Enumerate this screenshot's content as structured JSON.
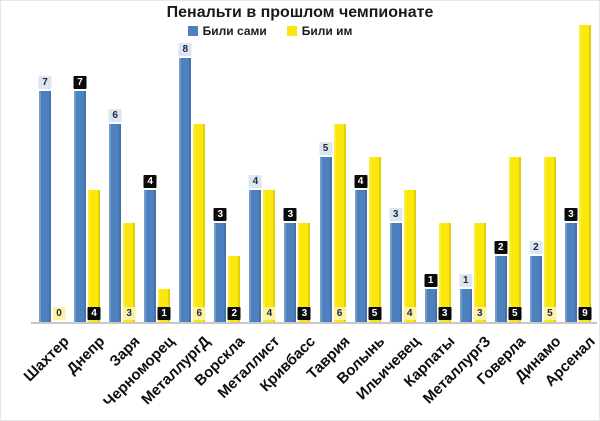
{
  "chart_data": {
    "type": "bar",
    "title": "Пенальти в прошлом чемпионате",
    "categories": [
      "Шахтер",
      "Днепр",
      "Заря",
      "Черноморец",
      "МеталлургД",
      "Ворскла",
      "Металлист",
      "Кривбасс",
      "Таврия",
      "Волынь",
      "Ильичевец",
      "Карпаты",
      "МеталлургЗ",
      "Говерла",
      "Динамо",
      "Арсенал"
    ],
    "series": [
      {
        "name": "Били сами",
        "color": "#4d81bd",
        "values": [
          7,
          7,
          6,
          4,
          8,
          3,
          4,
          3,
          5,
          4,
          3,
          1,
          1,
          2,
          2,
          3
        ]
      },
      {
        "name": "Били им",
        "color": "#fbe70c",
        "values": [
          0,
          4,
          3,
          1,
          6,
          2,
          4,
          3,
          6,
          5,
          4,
          3,
          3,
          5,
          5,
          9
        ]
      }
    ],
    "ylim": [
      0,
      9
    ],
    "grid": false,
    "legend_position": "top",
    "value_labels": "alternating light and dark tags",
    "label_style": {
      "light_blue_bg": "#dce6f2",
      "light_yellow_bg": "#fdf3a7",
      "dark_bg": "#0a0a0a",
      "dark_text": "#ffffff",
      "light_text": "#23293a"
    },
    "axis_line_color": "#c8c8c8"
  }
}
